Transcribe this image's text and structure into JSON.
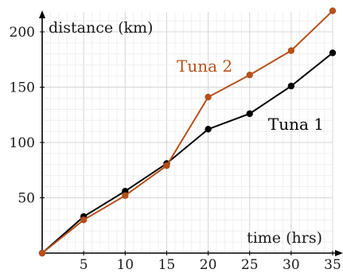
{
  "chart_data": {
    "type": "line",
    "title": "",
    "xlabel": "time (hrs)",
    "ylabel": "distance (km)",
    "xlim": [
      0,
      35
    ],
    "ylim": [
      0,
      200
    ],
    "x_ticks": [
      5,
      10,
      15,
      20,
      25,
      30,
      35
    ],
    "y_ticks": [
      50,
      100,
      150,
      200
    ],
    "grid": true,
    "series": [
      {
        "name": "Tuna 1",
        "color": "#000000",
        "x": [
          0,
          5,
          10,
          15,
          20,
          25,
          30,
          35
        ],
        "y": [
          0,
          33,
          56,
          81,
          112,
          126,
          151,
          181
        ]
      },
      {
        "name": "Tuna 2",
        "color": "#b5501a",
        "x": [
          0,
          5,
          10,
          15,
          20,
          25,
          30,
          35
        ],
        "y": [
          0,
          30,
          52,
          79,
          141,
          161,
          183,
          219
        ]
      }
    ]
  }
}
